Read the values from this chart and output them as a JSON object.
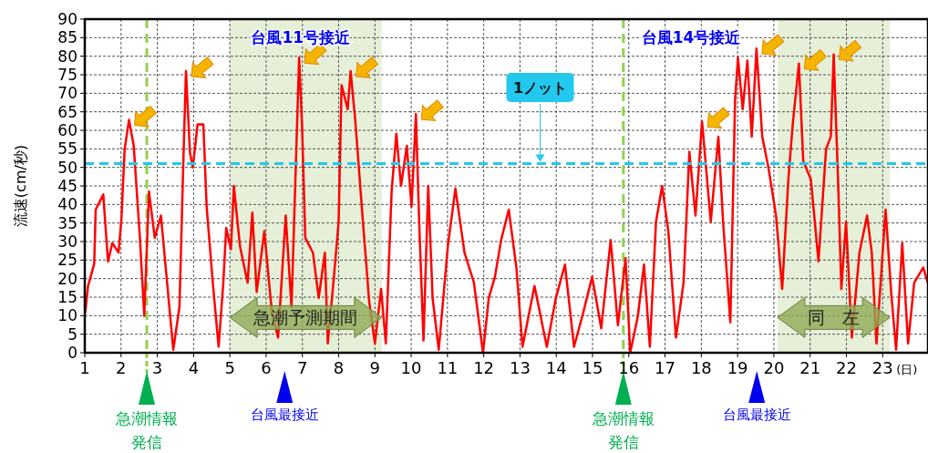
{
  "chart_data": {
    "type": "line",
    "ylabel": "流速(cm/秒)",
    "xlabel": "(日)",
    "x": [
      1.01,
      1.09,
      1.26,
      1.3,
      1.51,
      1.64,
      1.76,
      1.93,
      2.01,
      2.1,
      2.22,
      2.35,
      2.52,
      2.64,
      2.77,
      2.93,
      3.1,
      3.44,
      3.61,
      3.73,
      3.79,
      3.9,
      3.98,
      4.11,
      4.27,
      4.36,
      4.53,
      4.69,
      4.82,
      4.9,
      5.03,
      5.11,
      5.28,
      5.49,
      5.62,
      5.74,
      5.95,
      6.16,
      6.33,
      6.54,
      6.7,
      6.91,
      6.99,
      7.08,
      7.29,
      7.45,
      7.62,
      7.7,
      7.87,
      8.0,
      8.08,
      8.25,
      8.33,
      8.46,
      8.67,
      8.84,
      9.0,
      9.17,
      9.3,
      9.46,
      9.59,
      9.72,
      9.88,
      10.01,
      10.13,
      10.22,
      10.34,
      10.47,
      10.59,
      10.76,
      11.01,
      11.22,
      11.47,
      11.73,
      11.98,
      12.14,
      12.31,
      12.48,
      12.69,
      12.9,
      13.07,
      13.4,
      13.74,
      13.99,
      14.24,
      14.49,
      14.74,
      14.99,
      15.24,
      15.5,
      15.7,
      15.91,
      16.04,
      16.25,
      16.42,
      16.58,
      16.75,
      16.92,
      17.09,
      17.3,
      17.51,
      17.67,
      17.84,
      18.02,
      18.26,
      18.47,
      18.6,
      18.8,
      18.93,
      19.01,
      19.14,
      19.27,
      19.39,
      19.52,
      19.68,
      19.85,
      20.06,
      20.23,
      20.4,
      20.52,
      20.69,
      20.81,
      21.02,
      21.23,
      21.44,
      21.57,
      21.65,
      21.78,
      21.86,
      21.99,
      22.15,
      22.36,
      22.57,
      22.7,
      22.83,
      23.08,
      23.24,
      23.37,
      23.54,
      23.7,
      23.87,
      24.12,
      24.24
    ],
    "series": [
      {
        "color": "#ff0000",
        "values": [
          10.7,
          18,
          24,
          38.6,
          42.7,
          24.6,
          29.6,
          27,
          36,
          55,
          62.8,
          55.8,
          31,
          9.9,
          43.5,
          31,
          37,
          0.8,
          12.3,
          55.8,
          76,
          54,
          50,
          61.6,
          61.6,
          39.4,
          18.9,
          1.6,
          18.9,
          33.7,
          27.9,
          45,
          28.7,
          18.9,
          37.8,
          16.4,
          32.8,
          10.7,
          4.1,
          37,
          12.3,
          79.6,
          61.6,
          31,
          27,
          14.8,
          27,
          2.5,
          20.5,
          35.3,
          72.2,
          65.7,
          76,
          62.4,
          35.3,
          14,
          2.5,
          17.2,
          2.5,
          43.5,
          59.1,
          45,
          55.8,
          39.4,
          64.4,
          35.3,
          3.3,
          45,
          14.8,
          0.8,
          28.7,
          44.3,
          27,
          18.9,
          0,
          14.8,
          20.5,
          30.4,
          38.6,
          23,
          1.6,
          18,
          1.6,
          14.8,
          23.8,
          1.6,
          10.7,
          20.5,
          6.6,
          30.4,
          7.4,
          25.5,
          0,
          9.9,
          23.8,
          1.6,
          35.3,
          45,
          32.8,
          4.1,
          18.9,
          54.2,
          37,
          62.4,
          35.3,
          58.3,
          35.3,
          8.2,
          68.1,
          79.6,
          65.7,
          78.8,
          58.3,
          82.1,
          58.3,
          50,
          37,
          17.2,
          46.8,
          61.6,
          78,
          51.7,
          46.8,
          24.6,
          55,
          58.3,
          80.5,
          43.5,
          17.2,
          35.3,
          4.1,
          27,
          37,
          27,
          2.5,
          38.6,
          15.6,
          0.8,
          29.6,
          2.5,
          18.9,
          23,
          18.9
        ]
      }
    ],
    "xlim": [
      1,
      24.25
    ],
    "xticks": [
      1,
      2,
      3,
      4,
      5,
      6,
      7,
      8,
      9,
      10,
      11,
      12,
      13,
      14,
      15,
      16,
      17,
      18,
      19,
      20,
      21,
      22,
      23
    ],
    "ylim": [
      0,
      90
    ],
    "yticks": [
      0,
      5,
      10,
      15,
      20,
      25,
      30,
      35,
      40,
      45,
      50,
      55,
      60,
      65,
      70,
      75,
      80,
      85,
      90
    ],
    "grid": true,
    "line_style": "solid",
    "ref_lines": [
      {
        "axis": "y",
        "value": 51,
        "label": "1ノット",
        "color": "#22c8ee",
        "line_style": "dashed"
      },
      {
        "axis": "x",
        "value": 2.71,
        "color": "#92d050",
        "line_style": "dashed"
      },
      {
        "axis": "x",
        "value": 15.85,
        "color": "#92d050",
        "line_style": "dashed"
      }
    ],
    "bands": [
      {
        "axis": "x",
        "from": 5.0,
        "to": 9.19,
        "label": "急潮予測期間",
        "color": "#e6f0d8"
      },
      {
        "axis": "x",
        "from": 20.1,
        "to": 23.2,
        "label": "同　左",
        "color": "#e6f0d8"
      }
    ],
    "annotations": [
      "台風11号接近",
      "台風14号接近",
      "台風最接近",
      "台風最接近",
      "急潮情報発信",
      "急潮情報発信"
    ]
  }
}
